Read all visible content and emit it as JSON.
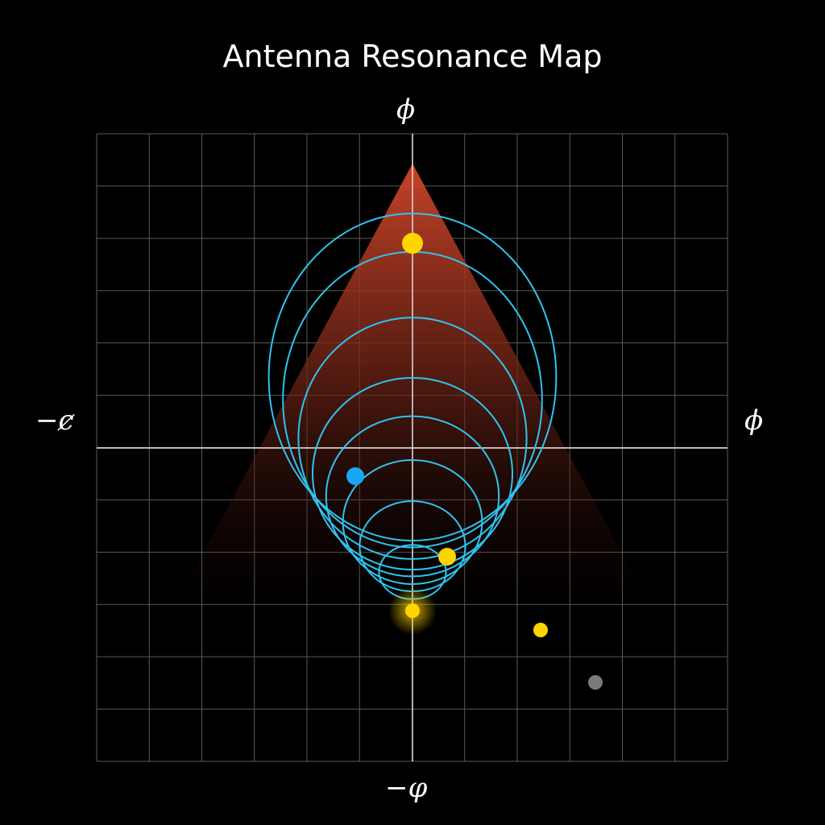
{
  "title": "Antenna Resonance Map",
  "axes": {
    "top_label": "ϕ",
    "bottom_label": "−φ",
    "left_label": "−ȼ",
    "right_label": "ϕ"
  },
  "colors": {
    "background": "#000000",
    "grid": "#5a5a5a",
    "axis": "#e8e8e8",
    "cone_top": "#d2462a",
    "curve": "#2ec4f0",
    "yellow_marker": "#ffd500",
    "blue_marker": "#1aa6f5",
    "gray_marker": "#7a7a7a"
  },
  "markers": [
    {
      "id": "top-yellow",
      "color": "yellow"
    },
    {
      "id": "focus-yellow",
      "color": "yellow"
    },
    {
      "id": "inner-yellow",
      "color": "yellow"
    },
    {
      "id": "outer-yellow",
      "color": "yellow"
    },
    {
      "id": "blue-marker",
      "color": "blue"
    },
    {
      "id": "gray-marker",
      "color": "gray"
    }
  ],
  "resonance_curves": 8
}
